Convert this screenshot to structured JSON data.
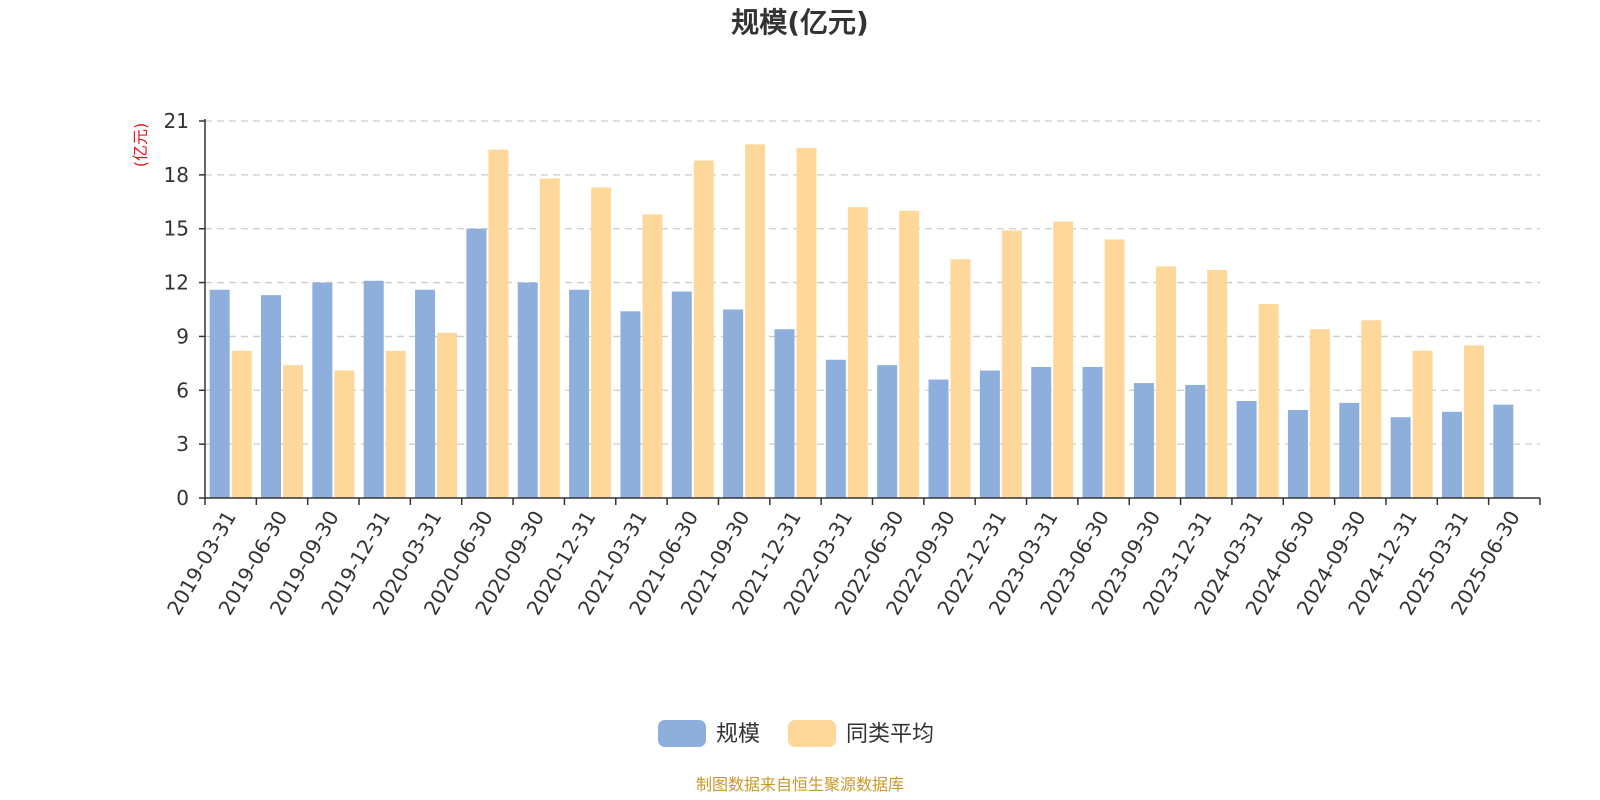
{
  "chart_data": {
    "type": "bar",
    "title": "规模(亿元)",
    "ylabel": "(亿元)",
    "ylim": [
      0,
      21
    ],
    "yticks": [
      0,
      3,
      6,
      9,
      12,
      15,
      18,
      21
    ],
    "grid": true,
    "legend_position": "bottom-center",
    "categories": [
      "2019-03-31",
      "2019-06-30",
      "2019-09-30",
      "2019-12-31",
      "2020-03-31",
      "2020-06-30",
      "2020-09-30",
      "2020-12-31",
      "2021-03-31",
      "2021-06-30",
      "2021-09-30",
      "2021-12-31",
      "2022-03-31",
      "2022-06-30",
      "2022-09-30",
      "2022-12-31",
      "2023-03-31",
      "2023-06-30",
      "2023-09-30",
      "2023-12-31",
      "2024-03-31",
      "2024-06-30",
      "2024-09-30",
      "2024-12-31",
      "2025-03-31",
      "2025-06-30"
    ],
    "series": [
      {
        "name": "规模",
        "color": "#8eaedb",
        "values": [
          11.6,
          11.3,
          12.0,
          12.1,
          11.6,
          15.0,
          12.0,
          11.6,
          10.4,
          11.5,
          10.5,
          9.4,
          7.7,
          7.4,
          6.6,
          7.1,
          7.3,
          7.3,
          6.4,
          6.3,
          5.4,
          4.9,
          5.3,
          4.5,
          4.8,
          5.2
        ]
      },
      {
        "name": "同类平均",
        "color": "#fdd89a",
        "values": [
          8.2,
          7.4,
          7.1,
          8.2,
          9.2,
          19.4,
          17.8,
          17.3,
          15.8,
          18.8,
          19.7,
          19.5,
          16.2,
          16.0,
          13.3,
          14.9,
          15.4,
          14.4,
          12.9,
          12.7,
          10.8,
          9.4,
          9.9,
          8.2,
          8.5,
          null
        ]
      }
    ]
  },
  "footer": {
    "source": "制图数据来自恒生聚源数据库"
  },
  "colors": {
    "title": "#333333",
    "unit": "#e8101a",
    "source": "#c9982a",
    "grid": "#cccccc",
    "axis": "#333333"
  }
}
